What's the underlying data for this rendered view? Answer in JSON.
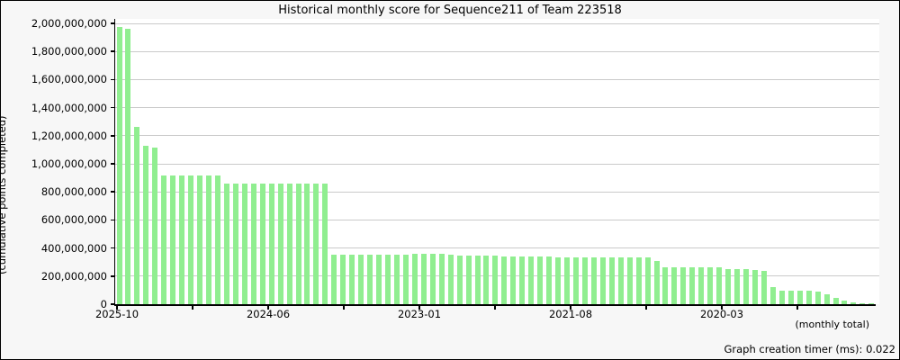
{
  "page": {
    "footer": "Graph creation timer (ms): 0.022"
  },
  "chart_data": {
    "type": "bar",
    "title": "Historical monthly score for Sequence211 of Team 223518",
    "ylabel": "(cumulative points completed)",
    "xlabel": "(monthly total)",
    "bar_color": "#90EE90",
    "grid_color": "#cacaca",
    "plot_background": "#ffffff",
    "page_background": "#f7f7f7",
    "grid": "on",
    "legend": "none",
    "ylim": [
      0,
      2000000000
    ],
    "y_tick_interval": 200000000,
    "y_tick_labels": [
      "2,000,000,000",
      "1,800,000,000",
      "1,600,000,000",
      "1,400,000,000",
      "1,200,000,000",
      "1,000,000,000",
      "800,000,000",
      "600,000,000",
      "400,000,000",
      "200,000,000",
      "0"
    ],
    "x_tick_labels": [
      "2025-10",
      "2024-06",
      "2023-01",
      "2021-08",
      "2020-03"
    ],
    "x_axis_direction": "newest month at left, oldest at right",
    "values": [
      1976000000,
      1960000000,
      1265000000,
      1131000000,
      1118000000,
      916000000,
      916000000,
      918000000,
      915000000,
      917000000,
      915000000,
      916000000,
      857000000,
      859000000,
      857000000,
      858000000,
      857000000,
      858000000,
      857000000,
      859000000,
      857000000,
      858000000,
      857000000,
      856000000,
      355000000,
      355000000,
      354000000,
      354000000,
      354000000,
      354000000,
      355000000,
      354000000,
      354000000,
      358000000,
      359000000,
      358000000,
      357000000,
      355000000,
      349000000,
      348000000,
      348000000,
      347000000,
      343000000,
      342000000,
      342000000,
      341000000,
      341000000,
      337000000,
      337000000,
      336000000,
      336000000,
      335000000,
      333000000,
      333000000,
      333000000,
      333000000,
      334000000,
      333000000,
      333000000,
      335000000,
      309000000,
      265000000,
      265000000,
      265000000,
      265000000,
      264000000,
      263000000,
      260000000,
      253000000,
      252000000,
      249000000,
      246000000,
      239000000,
      120000000,
      98000000,
      95000000,
      94000000,
      93000000,
      90000000,
      70000000,
      45000000,
      28000000,
      13000000,
      5000000,
      2000000
    ]
  }
}
